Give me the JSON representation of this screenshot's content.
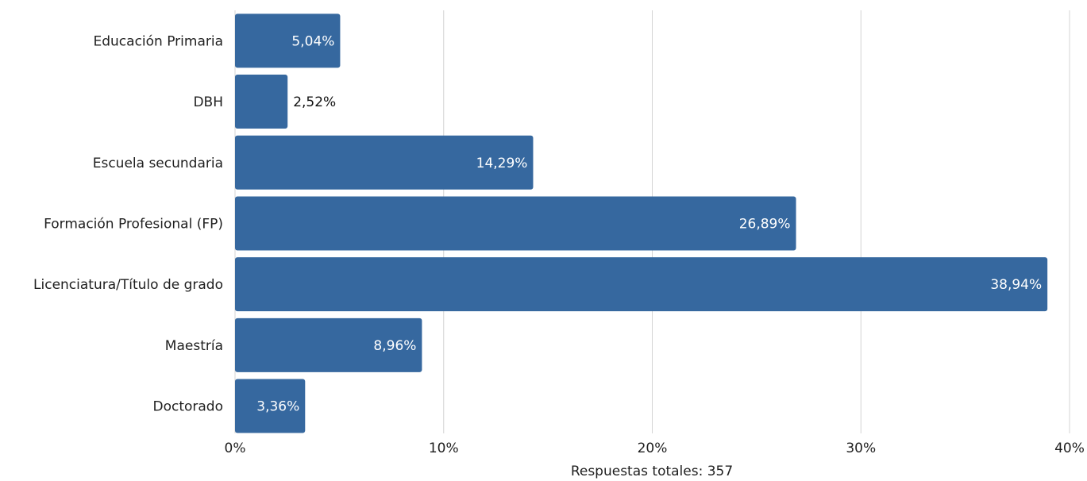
{
  "chart_data": {
    "type": "bar",
    "orientation": "horizontal",
    "categories": [
      "Educación Primaria",
      "DBH",
      "Escuela secundaria",
      "Formación Profesional (FP)",
      "Licenciatura/Título de grado",
      "Maestría",
      "Doctorado"
    ],
    "values": [
      5.04,
      2.52,
      14.29,
      26.89,
      38.94,
      8.96,
      3.36
    ],
    "data_labels": [
      "5,04%",
      "2,52%",
      "14,29%",
      "26,89%",
      "38,94%",
      "8,96%",
      "3,36%"
    ],
    "xlim": [
      0,
      40
    ],
    "x_ticks": [
      0,
      10,
      20,
      30,
      40
    ],
    "x_tick_labels": [
      "0%",
      "10%",
      "20%",
      "30%",
      "40%"
    ],
    "xlabel": "Respuestas totales: 357",
    "ylabel": "",
    "title": "",
    "grid": "vertical",
    "legend": "none",
    "colors": {
      "bar": "#36689f",
      "grid": "#d4d4d4",
      "label_inside": "#ffffff",
      "label_outside": "#111111"
    }
  }
}
